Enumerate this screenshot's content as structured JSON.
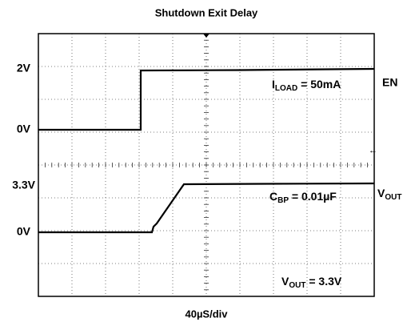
{
  "title": "Shutdown Exit Delay",
  "x_label": "40µS/div",
  "level_labels": [
    "2V",
    "0V",
    "3.3V",
    "0V"
  ],
  "annotations": {
    "load": {
      "main": "I",
      "sub": "LOAD",
      "rest": " = 50mA"
    },
    "cbp": {
      "main": "C",
      "sub": "BP",
      "rest": " = 0.01µF"
    },
    "vout_set": {
      "main": "V",
      "sub": "OUT",
      "rest": " = 3.3V"
    }
  },
  "channels": {
    "en": "EN",
    "vout": {
      "main": "V",
      "sub": "OUT"
    }
  }
}
